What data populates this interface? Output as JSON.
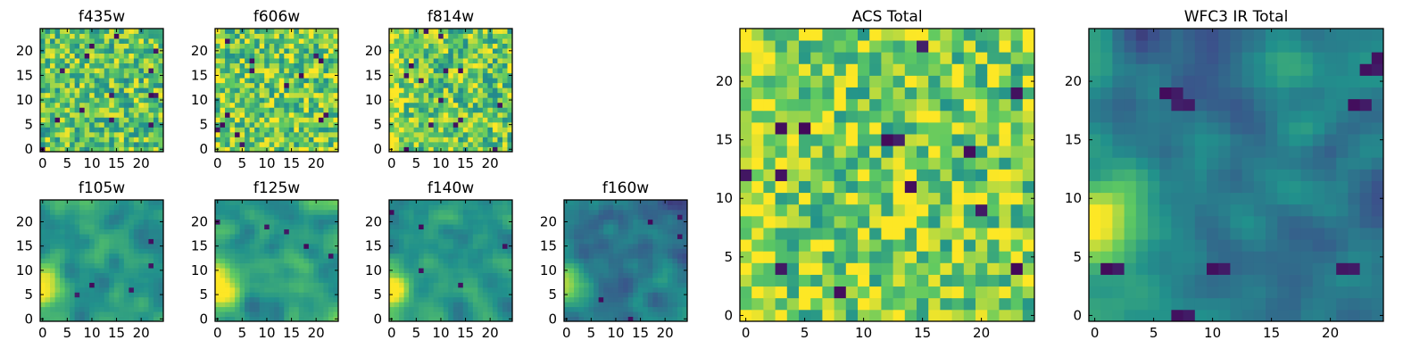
{
  "figure": {
    "colormap": "viridis",
    "grid_size": 25,
    "colormap_stops": [
      "#440154",
      "#3b528b",
      "#21918c",
      "#5ec962",
      "#fde725"
    ],
    "frame_color": "#000000"
  },
  "chart_data": [
    {
      "type": "heatmap",
      "title": "f435w",
      "xlabel": "",
      "ylabel": "",
      "xlim": [
        0,
        25
      ],
      "ylim": [
        0,
        25
      ],
      "x_ticks": [
        0,
        5,
        10,
        15,
        20
      ],
      "y_ticks": [
        0,
        5,
        10,
        15,
        20
      ],
      "grid": false,
      "pattern": "mottled-noise",
      "mean_level": 0.72,
      "bright_region": "none",
      "dark_pixels": "scattered"
    },
    {
      "type": "heatmap",
      "title": "f606w",
      "xlabel": "",
      "ylabel": "",
      "xlim": [
        0,
        25
      ],
      "ylim": [
        0,
        25
      ],
      "x_ticks": [
        0,
        5,
        10,
        15,
        20
      ],
      "y_ticks": [
        0,
        5,
        10,
        15,
        20
      ],
      "grid": false,
      "pattern": "mottled-noise",
      "mean_level": 0.76,
      "bright_region": "none",
      "dark_pixels": "scattered"
    },
    {
      "type": "heatmap",
      "title": "f814w",
      "xlabel": "",
      "ylabel": "",
      "xlim": [
        0,
        25
      ],
      "ylim": [
        0,
        25
      ],
      "x_ticks": [
        0,
        5,
        10,
        15,
        20
      ],
      "y_ticks": [
        0,
        5,
        10,
        15,
        20
      ],
      "grid": false,
      "pattern": "mottled-noise",
      "mean_level": 0.74,
      "bright_region": "left-edge",
      "dark_pixels": "scattered"
    },
    {
      "type": "heatmap",
      "title": "f105w",
      "xlabel": "",
      "ylabel": "",
      "xlim": [
        0,
        25
      ],
      "ylim": [
        0,
        25
      ],
      "x_ticks": [
        0,
        5,
        10,
        15,
        20
      ],
      "y_ticks": [
        0,
        5,
        10,
        15,
        20
      ],
      "grid": false,
      "pattern": "smooth-blobs",
      "mean_level": 0.52,
      "bright_region": "left-middle",
      "dark_pixels": "few"
    },
    {
      "type": "heatmap",
      "title": "f125w",
      "xlabel": "",
      "ylabel": "",
      "xlim": [
        0,
        25
      ],
      "ylim": [
        0,
        25
      ],
      "x_ticks": [
        0,
        5,
        10,
        15,
        20
      ],
      "y_ticks": [
        0,
        5,
        10,
        15,
        20
      ],
      "grid": false,
      "pattern": "smooth-blobs",
      "mean_level": 0.56,
      "bright_region": "left-middle",
      "dark_pixels": "few"
    },
    {
      "type": "heatmap",
      "title": "f140w",
      "xlabel": "",
      "ylabel": "",
      "xlim": [
        0,
        25
      ],
      "ylim": [
        0,
        25
      ],
      "x_ticks": [
        0,
        5,
        10,
        15,
        20
      ],
      "y_ticks": [
        0,
        5,
        10,
        15,
        20
      ],
      "grid": false,
      "pattern": "smooth-blobs",
      "mean_level": 0.5,
      "bright_region": "left-middle",
      "dark_pixels": "few"
    },
    {
      "type": "heatmap",
      "title": "f160w",
      "xlabel": "",
      "ylabel": "",
      "xlim": [
        0,
        25
      ],
      "ylim": [
        0,
        25
      ],
      "x_ticks": [
        0,
        5,
        10,
        15,
        20
      ],
      "y_ticks": [
        0,
        5,
        10,
        15,
        20
      ],
      "grid": false,
      "pattern": "smooth-blobs",
      "mean_level": 0.4,
      "bright_region": "left-middle",
      "dark_pixels": "few"
    },
    {
      "type": "heatmap",
      "title": "ACS Total",
      "xlabel": "",
      "ylabel": "",
      "xlim": [
        0,
        25
      ],
      "ylim": [
        0,
        25
      ],
      "x_ticks": [
        0,
        5,
        10,
        15,
        20
      ],
      "y_ticks": [
        0,
        5,
        10,
        15,
        20
      ],
      "grid": false,
      "pattern": "mottled-noise",
      "mean_level": 0.78,
      "bright_region": "left-edge",
      "dark_pixels": "scattered"
    },
    {
      "type": "heatmap",
      "title": "WFC3 IR Total",
      "xlabel": "",
      "ylabel": "",
      "xlim": [
        0,
        25
      ],
      "ylim": [
        0,
        25
      ],
      "x_ticks": [
        0,
        5,
        10,
        15,
        20
      ],
      "y_ticks": [
        0,
        5,
        10,
        15,
        20
      ],
      "grid": false,
      "pattern": "smooth-blobs",
      "mean_level": 0.42,
      "bright_region": "left-middle",
      "dark_pixels": "clustered"
    }
  ]
}
